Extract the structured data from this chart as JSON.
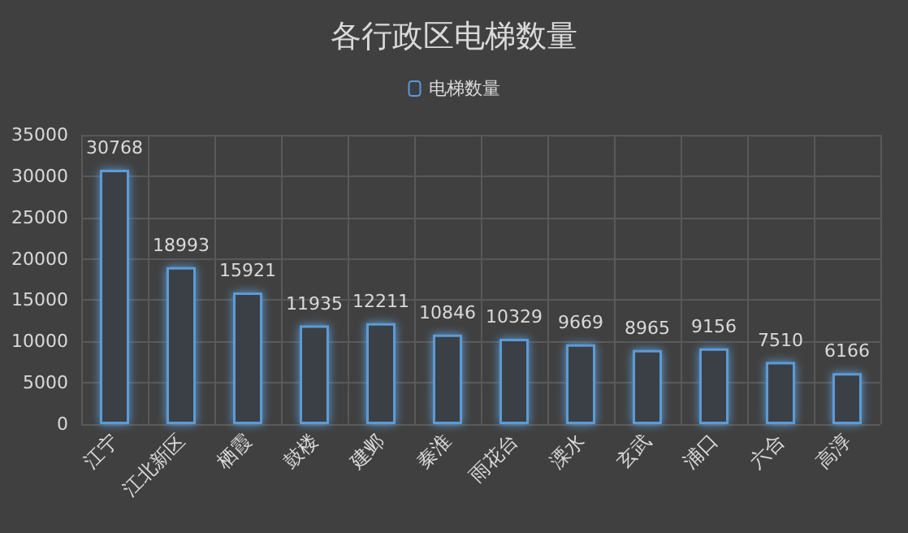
{
  "chart_data": {
    "type": "bar",
    "title": "各行政区电梯数量",
    "categories": [
      "江宁",
      "江北新区",
      "栖霞",
      "鼓楼",
      "建邺",
      "秦淮",
      "雨花台",
      "溧水",
      "玄武",
      "浦口",
      "六合",
      "高淳"
    ],
    "series": [
      {
        "name": "电梯数量",
        "color": "#5b9bd5",
        "values": [
          30768,
          18993,
          15921,
          11935,
          12211,
          10846,
          10329,
          9669,
          8965,
          9156,
          7510,
          6166
        ]
      }
    ],
    "ylim": [
      0,
      35000
    ],
    "yticks": [
      0,
      5000,
      10000,
      15000,
      20000,
      25000,
      30000,
      35000
    ],
    "grid": true,
    "legend": "top",
    "data_labels": true
  }
}
